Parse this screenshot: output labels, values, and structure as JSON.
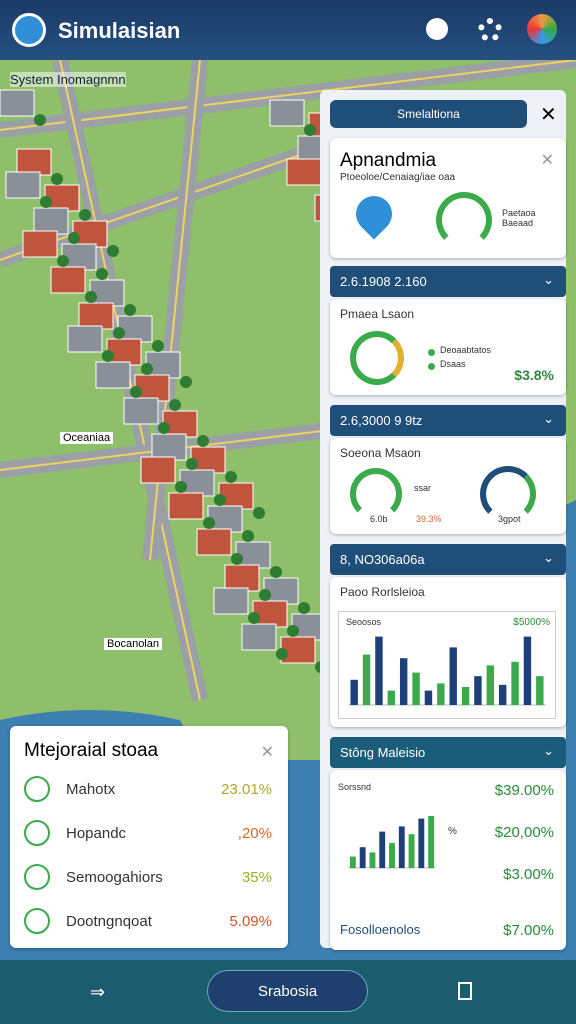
{
  "header": {
    "title": "Simulaisian"
  },
  "map": {
    "label": "System Inomagnmn",
    "places": [
      "Oceaniaa",
      "Bocanolan"
    ]
  },
  "panel": {
    "button": "Smelaltiona",
    "overview": {
      "title": "Apnandmia",
      "subtitle": "Ptoeoloe/Cenaiag/iae oaa",
      "side": "Paetaoa Baeaad"
    },
    "sections": [
      {
        "header": "2.6.1908 2.160",
        "title": "Pmaea Lsaon",
        "legend": [
          "Deoaabtatos",
          "Dsaas"
        ],
        "value": "$3.8%"
      },
      {
        "header": "2.6,3000 9 9tz",
        "title": "Soeona Msaon",
        "note": "ssar",
        "left": "6.0b",
        "middle": "39.3%",
        "right": "3gpot"
      },
      {
        "header": "8, NO306a06a",
        "title": "Paoo Rorlsleioa",
        "chart_title": "Seoosos",
        "chart_value": "$5000%",
        "chart": {
          "ylim": [
            0,
            100
          ],
          "values": [
            35,
            70,
            95,
            20,
            65,
            45,
            20,
            30,
            80,
            25,
            40,
            55,
            28,
            60,
            95,
            40
          ],
          "colors": [
            "#1f3f7a",
            "#3aaa4a"
          ]
        }
      },
      {
        "header": "Stông Maleisio",
        "chart_title": "Sorssnd",
        "chart_unit": "%",
        "values": [
          "$39.00%",
          "$20,00%",
          "$3.00%"
        ],
        "footer": "Fosolloenolos",
        "footer_value": "$7.00%",
        "chart": {
          "ylim": [
            0,
            100
          ],
          "values": [
            22,
            40,
            30,
            70,
            48,
            80,
            65,
            95,
            100
          ],
          "colors": [
            "#3aaa4a",
            "#1f3f7a"
          ]
        }
      }
    ]
  },
  "stats": {
    "title": "Mtejoraial stoaa",
    "rows": [
      {
        "label": "Mahotx",
        "value": "23.01%",
        "color": "#b3a52a"
      },
      {
        "label": "Hopandc",
        "value": ",20%",
        "color": "#d2692a"
      },
      {
        "label": "Semoogahiors",
        "value": "35%",
        "color": "#9aae2a"
      },
      {
        "label": "Dootngnqoat",
        "value": "5.09%",
        "color": "#d2552a"
      }
    ]
  },
  "footer": {
    "button": "Srabosia"
  }
}
